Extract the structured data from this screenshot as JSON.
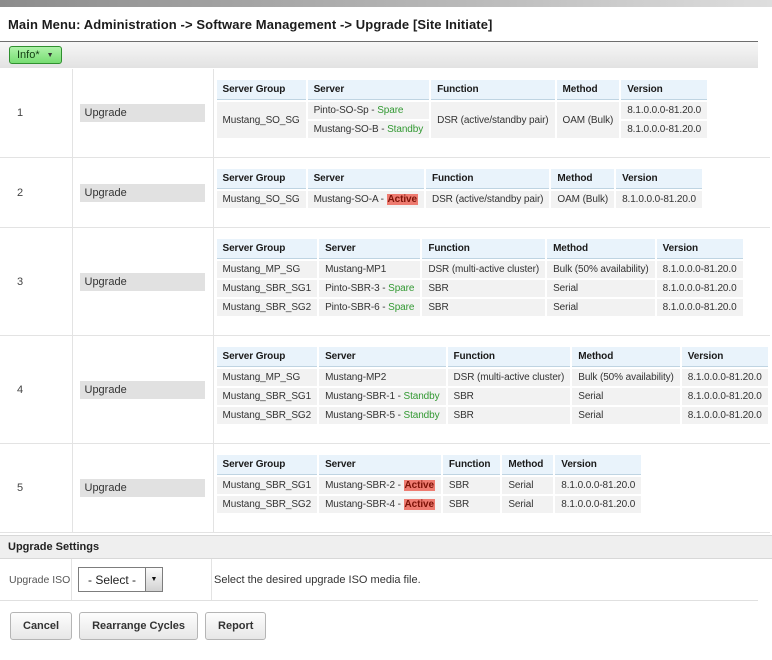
{
  "page": {
    "title": "Main Menu: Administration -> Software Management -> Upgrade [Site Initiate]"
  },
  "toolbar": {
    "info_label": "Info*",
    "caret_icon": "▼"
  },
  "colors": {
    "status_ok": "#339933",
    "active_bg": "#ee7b70",
    "active_text": "#7c1207",
    "header_bg": "#e9f3fb",
    "row_bg": "#f2f2f2",
    "info_button_green": "#8ce887"
  },
  "status_styles": {
    "Spare": "ok",
    "Standby": "ok",
    "Active": "alert"
  },
  "cycles": [
    {
      "id": "1",
      "action": "Upgrade",
      "columns": [
        "Server Group",
        "Server",
        "Function",
        "Method",
        "Version"
      ],
      "rows": [
        [
          {
            "text": "Mustang_SO_SG",
            "rowspan": 2
          },
          {
            "server": "Pinto-SO-Sp",
            "status": "Spare"
          },
          {
            "text": "DSR (active/standby pair)",
            "rowspan": 2
          },
          {
            "text": "OAM (Bulk)",
            "rowspan": 2
          },
          {
            "text": "8.1.0.0.0-81.20.0"
          }
        ],
        [
          {
            "server": "Mustang-SO-B",
            "status": "Standby"
          },
          {
            "text": "8.1.0.0.0-81.20.0"
          }
        ]
      ]
    },
    {
      "id": "2",
      "action": "Upgrade",
      "columns": [
        "Server Group",
        "Server",
        "Function",
        "Method",
        "Version"
      ],
      "rows": [
        [
          {
            "text": "Mustang_SO_SG"
          },
          {
            "server": "Mustang-SO-A",
            "status": "Active"
          },
          {
            "text": "DSR (active/standby pair)"
          },
          {
            "text": "OAM (Bulk)"
          },
          {
            "text": "8.1.0.0.0-81.20.0"
          }
        ]
      ]
    },
    {
      "id": "3",
      "action": "Upgrade",
      "columns": [
        "Server Group",
        "Server",
        "Function",
        "Method",
        "Version"
      ],
      "rows": [
        [
          {
            "text": "Mustang_MP_SG"
          },
          {
            "server": "Mustang-MP1"
          },
          {
            "text": "DSR (multi-active cluster)"
          },
          {
            "text": "Bulk (50% availability)"
          },
          {
            "text": "8.1.0.0.0-81.20.0"
          }
        ],
        [
          {
            "text": "Mustang_SBR_SG1"
          },
          {
            "server": "Pinto-SBR-3",
            "status": "Spare"
          },
          {
            "text": "SBR"
          },
          {
            "text": "Serial"
          },
          {
            "text": "8.1.0.0.0-81.20.0"
          }
        ],
        [
          {
            "text": "Mustang_SBR_SG2"
          },
          {
            "server": "Pinto-SBR-6",
            "status": "Spare"
          },
          {
            "text": "SBR"
          },
          {
            "text": "Serial"
          },
          {
            "text": "8.1.0.0.0-81.20.0"
          }
        ]
      ]
    },
    {
      "id": "4",
      "action": "Upgrade",
      "columns": [
        "Server Group",
        "Server",
        "Function",
        "Method",
        "Version"
      ],
      "rows": [
        [
          {
            "text": "Mustang_MP_SG"
          },
          {
            "server": "Mustang-MP2"
          },
          {
            "text": "DSR (multi-active cluster)"
          },
          {
            "text": "Bulk (50% availability)"
          },
          {
            "text": "8.1.0.0.0-81.20.0"
          }
        ],
        [
          {
            "text": "Mustang_SBR_SG1"
          },
          {
            "server": "Mustang-SBR-1",
            "status": "Standby"
          },
          {
            "text": "SBR"
          },
          {
            "text": "Serial"
          },
          {
            "text": "8.1.0.0.0-81.20.0"
          }
        ],
        [
          {
            "text": "Mustang_SBR_SG2"
          },
          {
            "server": "Mustang-SBR-5",
            "status": "Standby"
          },
          {
            "text": "SBR"
          },
          {
            "text": "Serial"
          },
          {
            "text": "8.1.0.0.0-81.20.0"
          }
        ]
      ]
    },
    {
      "id": "5",
      "action": "Upgrade",
      "columns": [
        "Server Group",
        "Server",
        "Function",
        "Method",
        "Version"
      ],
      "rows": [
        [
          {
            "text": "Mustang_SBR_SG1"
          },
          {
            "server": "Mustang-SBR-2",
            "status": "Active"
          },
          {
            "text": "SBR"
          },
          {
            "text": "Serial"
          },
          {
            "text": "8.1.0.0.0-81.20.0"
          }
        ],
        [
          {
            "text": "Mustang_SBR_SG2"
          },
          {
            "server": "Mustang-SBR-4",
            "status": "Active"
          },
          {
            "text": "SBR"
          },
          {
            "text": "Serial"
          },
          {
            "text": "8.1.0.0.0-81.20.0"
          }
        ]
      ]
    }
  ],
  "settings": {
    "section_title": "Upgrade Settings",
    "field_label": "Upgrade ISO",
    "select_value": "- Select -",
    "select_caret": "▼",
    "description": "Select the desired upgrade ISO media file."
  },
  "footer": {
    "buttons": [
      {
        "label": "Cancel"
      },
      {
        "label": "Rearrange Cycles"
      },
      {
        "label": "Report"
      }
    ]
  }
}
